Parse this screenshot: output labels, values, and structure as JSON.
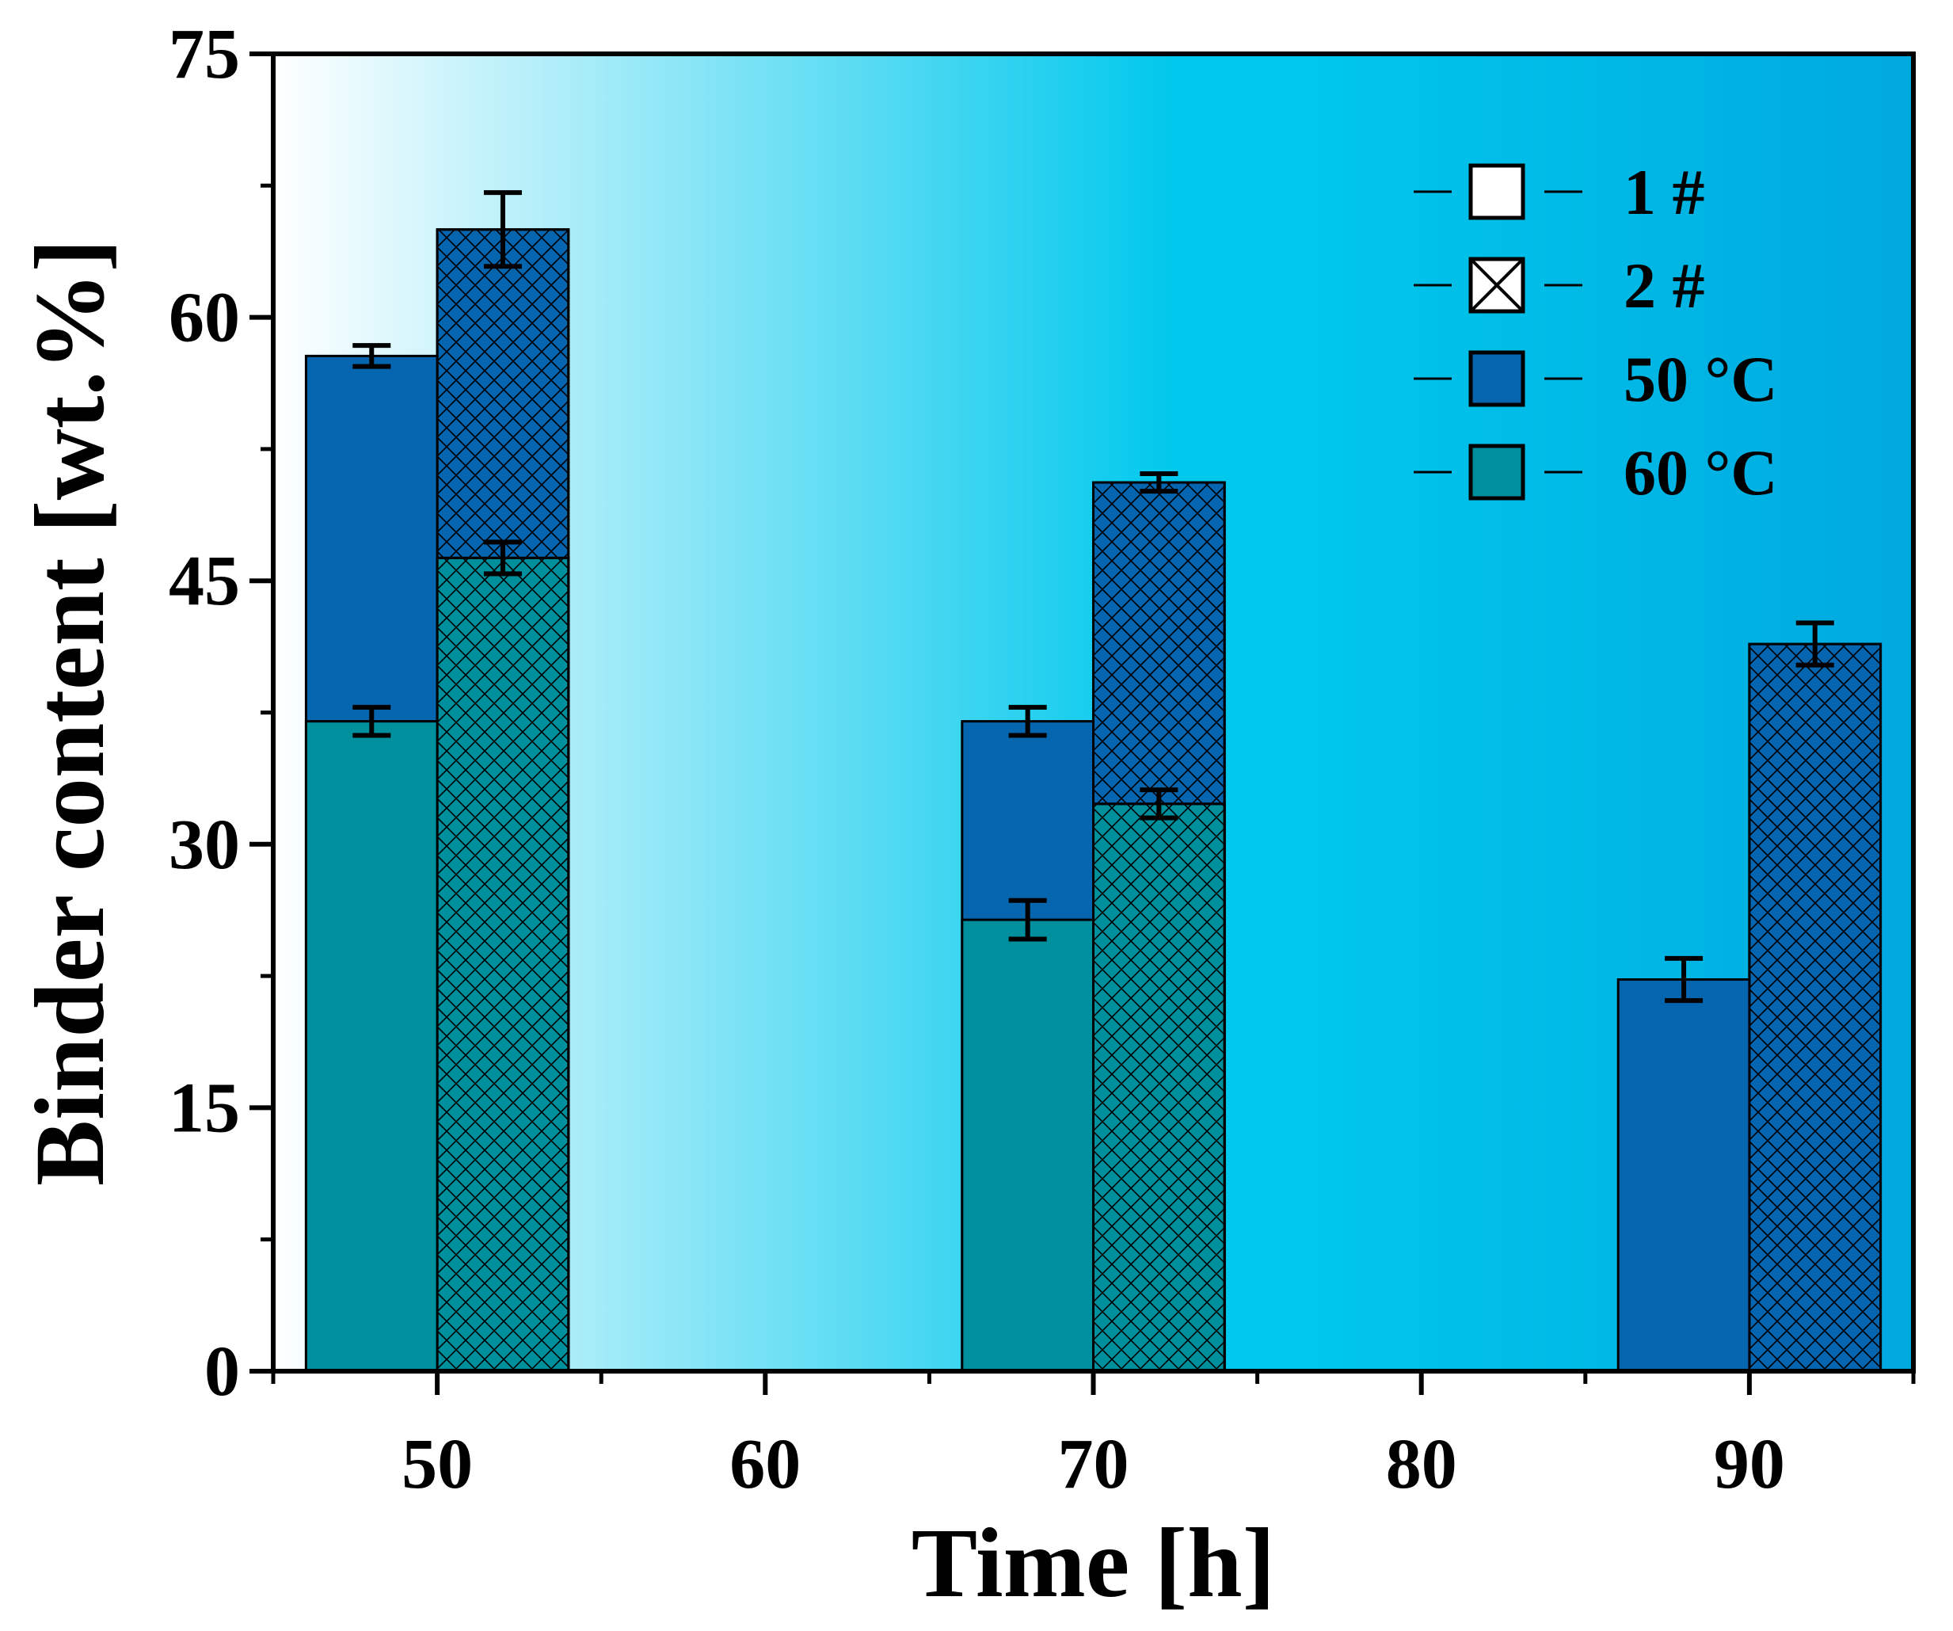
{
  "chart_data": {
    "type": "bar",
    "stacking": "overlapping",
    "xlabel": "Time [h]",
    "ylabel": "Binder content [wt.%]",
    "xlim": [
      45,
      95
    ],
    "ylim": [
      0,
      75
    ],
    "x_ticks": [
      50,
      60,
      70,
      80,
      90
    ],
    "y_ticks": [
      0,
      15,
      30,
      45,
      60,
      75
    ],
    "grid": false,
    "legend_position": "top-right",
    "legend": [
      {
        "label": "1 #",
        "kind": "sample-1"
      },
      {
        "label": "2 #",
        "kind": "sample-2"
      },
      {
        "label": "50 °C",
        "kind": "temp-50"
      },
      {
        "label": "60 °C",
        "kind": "temp-60"
      }
    ],
    "colors": {
      "temp_50": "#0565ae",
      "temp_60": "#008f9c",
      "background_left": "#ffffff",
      "background_mid": "#00c8ec",
      "background_right": "#00a9e0"
    },
    "bars": [
      {
        "sample": "1 #",
        "temperature": "50 °C",
        "time": 50,
        "value": 57.8,
        "error": 0.6
      },
      {
        "sample": "1 #",
        "temperature": "60 °C",
        "time": 50,
        "value": 37.0,
        "error": 0.8
      },
      {
        "sample": "2 #",
        "temperature": "50 °C",
        "time": 50,
        "value": 65.0,
        "error": 2.1
      },
      {
        "sample": "2 #",
        "temperature": "60 °C",
        "time": 50,
        "value": 46.3,
        "error": 0.9
      },
      {
        "sample": "1 #",
        "temperature": "50 °C",
        "time": 70,
        "value": 37.0,
        "error": 0.8
      },
      {
        "sample": "1 #",
        "temperature": "60 °C",
        "time": 70,
        "value": 25.7,
        "error": 1.1
      },
      {
        "sample": "2 #",
        "temperature": "50 °C",
        "time": 70,
        "value": 50.6,
        "error": 0.5
      },
      {
        "sample": "2 #",
        "temperature": "60 °C",
        "time": 70,
        "value": 32.3,
        "error": 0.8
      },
      {
        "sample": "1 #",
        "temperature": "50 °C",
        "time": 90,
        "value": 22.3,
        "error": 1.2
      },
      {
        "sample": "2 #",
        "temperature": "50 °C",
        "time": 90,
        "value": 41.4,
        "error": 1.2
      }
    ]
  }
}
